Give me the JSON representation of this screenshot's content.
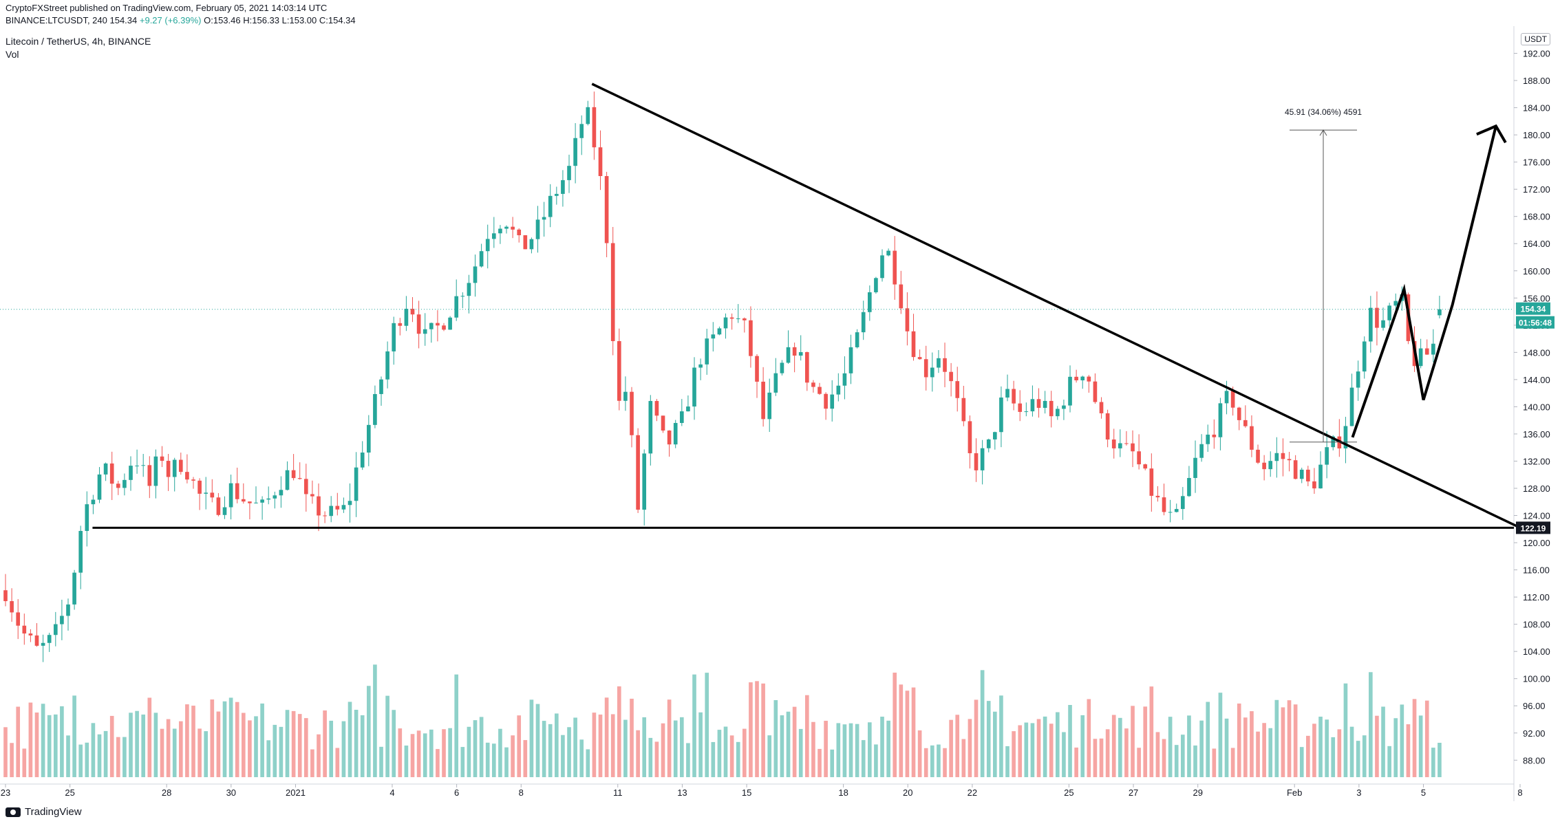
{
  "header": {
    "published": "CryptoFXStreet published on TradingView.com, February 05, 2021 14:03:14 UTC",
    "symbol": "BINANCE:LTCUSDT, 240",
    "last": "154.34",
    "change": "+9.27 (+6.39%)",
    "open": "O:153.46",
    "high": "H:156.33",
    "low": "L:153.00",
    "close": "C:154.34",
    "title": "Litecoin / TetherUS, 4h, BINANCE",
    "vol_label": "Vol"
  },
  "footer": {
    "brand": "TradingView"
  },
  "currency": "USDT",
  "colors": {
    "up": "#26a69a",
    "down": "#ef5350",
    "vol_up": "#8ed1c9",
    "vol_down": "#f6a5a3",
    "badge_bg": "#26a69a",
    "support_badge_bg": "#131722",
    "drawing": "#000000",
    "measure": "#555555"
  },
  "chart_data": {
    "type": "candlestick",
    "title": "",
    "y_axis_ticks": [
      88,
      92,
      96,
      100,
      104,
      108,
      112,
      116,
      120,
      124,
      128,
      132,
      136,
      140,
      144,
      148,
      152,
      156,
      160,
      164,
      168,
      172,
      176,
      180,
      184,
      188,
      192
    ],
    "y_axis_tick_labels": [
      "88.00",
      "92.00",
      "96.00",
      "100.00",
      "104.00",
      "108.00",
      "112.00",
      "116.00",
      "120.00",
      "124.00",
      "128.00",
      "132.00",
      "136.00",
      "140.00",
      "144.00",
      "148.00",
      "152.00",
      "156.00",
      "160.00",
      "164.00",
      "168.00",
      "172.00",
      "176.00",
      "180.00",
      "184.00",
      "188.00",
      "192.00"
    ],
    "ylim": [
      85.5,
      196
    ],
    "x_axis_ticks": [
      {
        "label": "23",
        "day": -9
      },
      {
        "label": "25",
        "day": -7
      },
      {
        "label": "28",
        "day": -4
      },
      {
        "label": "30",
        "day": -2
      },
      {
        "label": "2021",
        "day": 0
      },
      {
        "label": "4",
        "day": 3
      },
      {
        "label": "6",
        "day": 5
      },
      {
        "label": "8",
        "day": 7
      },
      {
        "label": "11",
        "day": 10
      },
      {
        "label": "13",
        "day": 12
      },
      {
        "label": "15",
        "day": 14
      },
      {
        "label": "18",
        "day": 17
      },
      {
        "label": "20",
        "day": 19
      },
      {
        "label": "22",
        "day": 21
      },
      {
        "label": "25",
        "day": 24
      },
      {
        "label": "27",
        "day": 26
      },
      {
        "label": "29",
        "day": 28
      },
      {
        "label": "Feb",
        "day": 31
      },
      {
        "label": "3",
        "day": 33
      },
      {
        "label": "5",
        "day": 35
      },
      {
        "label": "8",
        "day": 38
      }
    ],
    "xlim_days": [
      -9.15,
      39.2
    ],
    "interval": "4h",
    "anchors": [
      [
        -9.0,
        113
      ],
      [
        -8.5,
        107
      ],
      [
        -8.0,
        104
      ],
      [
        -7.5,
        106
      ],
      [
        -7.0,
        112
      ],
      [
        -6.6,
        124
      ],
      [
        -6.0,
        131
      ],
      [
        -5.5,
        128
      ],
      [
        -5.0,
        133
      ],
      [
        -4.5,
        128
      ],
      [
        -4.2,
        134
      ],
      [
        -4.0,
        130
      ],
      [
        -3.5,
        132
      ],
      [
        -3.0,
        127
      ],
      [
        -2.5,
        125
      ],
      [
        -2.0,
        128
      ],
      [
        -1.5,
        126
      ],
      [
        -1.0,
        125
      ],
      [
        -0.5,
        129
      ],
      [
        0.0,
        131
      ],
      [
        0.3,
        126
      ],
      [
        1.0,
        124
      ],
      [
        1.6,
        125
      ],
      [
        2.0,
        133
      ],
      [
        2.5,
        141
      ],
      [
        3.0,
        151
      ],
      [
        3.5,
        156
      ],
      [
        4.0,
        150
      ],
      [
        4.5,
        152
      ],
      [
        5.0,
        156
      ],
      [
        5.5,
        160
      ],
      [
        6.0,
        166
      ],
      [
        6.5,
        168
      ],
      [
        7.0,
        163
      ],
      [
        7.5,
        166
      ],
      [
        8.0,
        171
      ],
      [
        8.5,
        175
      ],
      [
        9.0,
        184
      ],
      [
        9.3,
        178
      ],
      [
        9.6,
        169
      ],
      [
        10.0,
        140
      ],
      [
        10.3,
        143
      ],
      [
        10.6,
        124
      ],
      [
        11.0,
        140
      ],
      [
        11.5,
        134
      ],
      [
        12.0,
        138
      ],
      [
        12.5,
        147
      ],
      [
        13.0,
        150
      ],
      [
        13.5,
        154
      ],
      [
        14.0,
        151
      ],
      [
        14.5,
        138
      ],
      [
        15.0,
        145
      ],
      [
        15.5,
        149
      ],
      [
        16.0,
        143
      ],
      [
        16.5,
        141
      ],
      [
        17.0,
        144
      ],
      [
        17.5,
        151
      ],
      [
        18.0,
        160
      ],
      [
        18.3,
        164
      ],
      [
        18.7,
        158
      ],
      [
        19.0,
        151
      ],
      [
        19.5,
        145
      ],
      [
        20.0,
        148
      ],
      [
        20.5,
        141
      ],
      [
        21.0,
        131
      ],
      [
        21.5,
        134
      ],
      [
        22.0,
        142
      ],
      [
        22.5,
        139
      ],
      [
        23.0,
        141
      ],
      [
        23.5,
        138
      ],
      [
        24.0,
        143
      ],
      [
        24.5,
        146
      ],
      [
        25.0,
        138
      ],
      [
        25.5,
        134
      ],
      [
        26.0,
        133
      ],
      [
        26.5,
        128
      ],
      [
        27.0,
        124
      ],
      [
        27.3,
        123
      ],
      [
        27.6,
        127
      ],
      [
        28.0,
        133
      ],
      [
        28.5,
        137
      ],
      [
        29.0,
        142
      ],
      [
        29.3,
        138
      ],
      [
        30.0,
        131
      ],
      [
        30.5,
        133
      ],
      [
        31.0,
        131
      ],
      [
        31.5,
        128
      ],
      [
        32.0,
        133
      ],
      [
        32.5,
        136
      ],
      [
        33.0,
        147
      ],
      [
        33.3,
        154
      ],
      [
        33.7,
        152
      ],
      [
        34.0,
        154
      ],
      [
        34.3,
        156
      ],
      [
        34.6,
        147
      ],
      [
        35.0,
        147
      ],
      [
        35.3,
        149
      ],
      [
        35.5,
        154
      ]
    ],
    "candles_count": 230,
    "last_candle": {
      "open": 153.46,
      "high": 156.33,
      "low": 153.0,
      "close": 154.34
    },
    "last_price": 154.34,
    "countdown": "01:56:48",
    "support_level": 122.19,
    "support_label": "122.19",
    "descending_trendline": {
      "from": {
        "day": 9.2,
        "price": 187.5
      },
      "to": {
        "day": 38.0,
        "price": 122.2
      }
    },
    "measure": {
      "from_price": 134.8,
      "to_price": 180.71,
      "label": "45.91 (34.06%) 4591"
    },
    "projection_path": [
      {
        "day": 32.8,
        "price": 135.5
      },
      {
        "day": 34.4,
        "price": 157.3
      },
      {
        "day": 35.0,
        "price": 141.0
      },
      {
        "day": 35.9,
        "price": 155.0
      },
      {
        "day": 37.25,
        "price": 181.3
      }
    ]
  }
}
